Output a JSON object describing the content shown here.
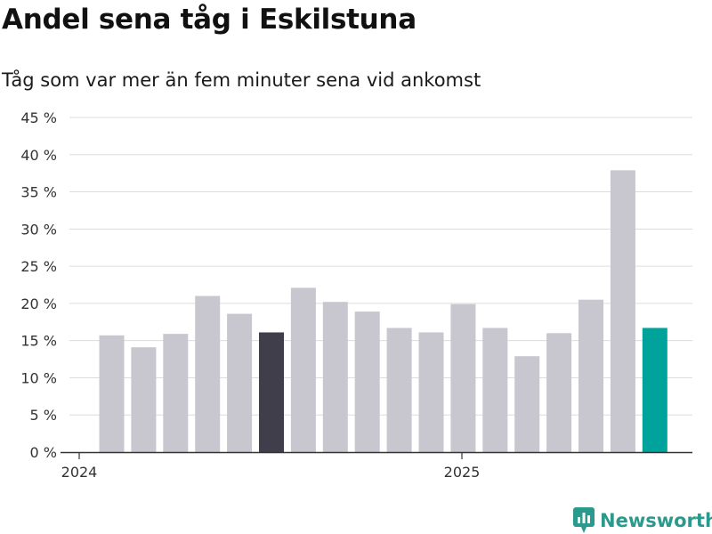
{
  "title": "Andel sena tåg i Eskilstuna",
  "subtitle": "Tåg som var mer än fem minuter sena vid ankomst",
  "brand": "Newsworthy",
  "colors": {
    "bar": "#c8c7cf",
    "highlight": "#3f3e4a",
    "latest": "#00a39b",
    "grid": "#dcdcdc",
    "axis": "#333333",
    "brand": "#2a9a8c"
  },
  "chart_data": {
    "type": "bar",
    "y_tick_labels": [
      "0 %",
      "5 %",
      "10 %",
      "15 %",
      "20 %",
      "25 %",
      "30 %",
      "35 %",
      "40 %",
      "45 %"
    ],
    "x_tick_labels": [
      "2024",
      "2025"
    ],
    "ylim": [
      0,
      45
    ],
    "grid": true,
    "values": [
      15.7,
      14.1,
      15.9,
      21.0,
      18.6,
      16.1,
      22.1,
      20.2,
      18.9,
      16.7,
      16.1,
      19.9,
      16.7,
      12.9,
      16.0,
      20.5,
      37.9,
      16.7
    ],
    "highlight_index": 5,
    "latest_index": 17
  }
}
